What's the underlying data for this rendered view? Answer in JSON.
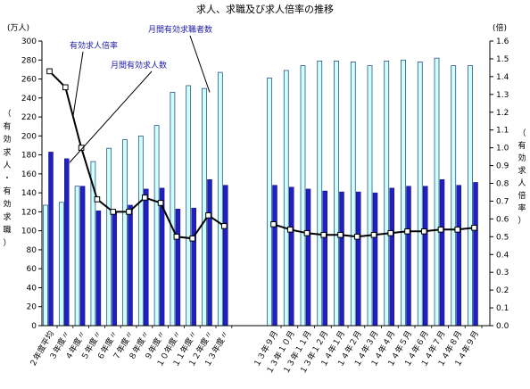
{
  "chart_data": {
    "type": "bar+line",
    "title": "求人、求職及び求人倍率の推移",
    "left_unit": "(万人)",
    "right_unit": "(倍)",
    "left_axis_label": [
      "（",
      "有",
      "効",
      "求",
      "人",
      "・",
      "有",
      "効",
      "求",
      "職",
      "）"
    ],
    "right_axis_label": [
      "（",
      "有",
      "効",
      "求",
      "人",
      "倍",
      "率",
      "）"
    ],
    "left_ylim": [
      0,
      300
    ],
    "left_ticks": [
      "0",
      "20",
      "40",
      "60",
      "80",
      "100",
      "120",
      "140",
      "160",
      "180",
      "200",
      "220",
      "240",
      "260",
      "280",
      "300"
    ],
    "right_ylim": [
      0.0,
      1.6
    ],
    "right_ticks": [
      "0.0",
      "0.1",
      "0.2",
      "0.3",
      "0.4",
      "0.5",
      "0.6",
      "0.7",
      "0.8",
      "0.9",
      "1.0",
      "1.1",
      "1.2",
      "1.3",
      "1.4",
      "1.5",
      "1.6"
    ],
    "categories": [
      "２年度平均",
      "３年度〃",
      "４年度〃",
      "５年度〃",
      "６年度〃",
      "７年度〃",
      "８年度〃",
      "９年度〃",
      "１０年度〃",
      "１１年度〃",
      "１２年度〃",
      "１３年度〃",
      "１３年９月",
      "１３年１０月",
      "１３年１１月",
      "１３年１２月",
      "１４年１月",
      "１４年２月",
      "１４年３月",
      "１４年４月",
      "１４年５月",
      "１４年６月",
      "１４年７月",
      "１４年８月",
      "１４年９月"
    ],
    "series": [
      {
        "name": "月間有効求職者数",
        "kind": "bar",
        "color": "#ccffff",
        "values": [
          127,
          130,
          147,
          173,
          187,
          196,
          200,
          211,
          246,
          253,
          250,
          267,
          261,
          269,
          274,
          279,
          279,
          278,
          274,
          279,
          280,
          278,
          282,
          274,
          274
        ]
      },
      {
        "name": "月間有効求人数",
        "kind": "bar",
        "color": "#1f1fc2",
        "values": [
          183,
          176,
          147,
          121,
          120,
          127,
          144,
          145,
          123,
          124,
          154,
          148,
          148,
          146,
          144,
          142,
          141,
          141,
          140,
          145,
          147,
          147,
          154,
          148,
          151
        ]
      },
      {
        "name": "有効求人倍率",
        "kind": "line",
        "axis": "right",
        "color": "#000000",
        "values": [
          1.43,
          1.34,
          1.0,
          0.71,
          0.64,
          0.64,
          0.72,
          0.69,
          0.5,
          0.49,
          0.62,
          0.56,
          0.57,
          0.54,
          0.52,
          0.51,
          0.51,
          0.5,
          0.51,
          0.52,
          0.53,
          0.53,
          0.54,
          0.54,
          0.55
        ]
      }
    ],
    "annotations": [
      "有効求人倍率",
      "月間有効求人数",
      "月間有効求職者数"
    ],
    "grid": false
  }
}
